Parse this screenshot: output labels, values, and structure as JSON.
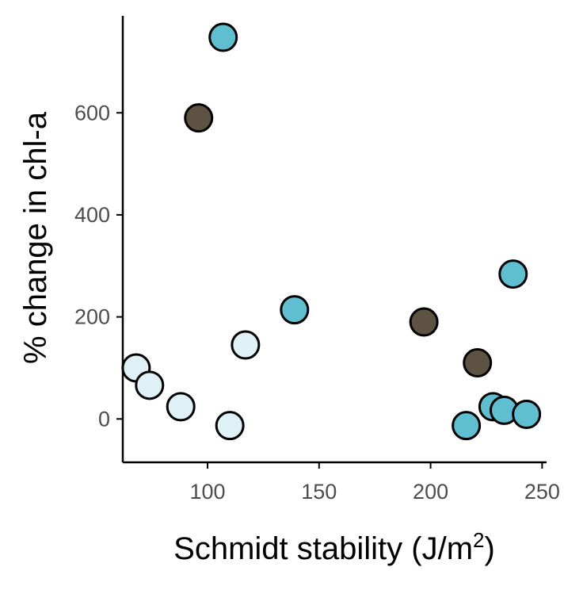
{
  "chart_data": {
    "type": "scatter",
    "xlabel": "Schmidt stability (J/m",
    "xlabel_sup": "2",
    "xlabel_end": ")",
    "ylabel": "% change in chl-a",
    "xlim": [
      62,
      252
    ],
    "ylim": [
      -85,
      790
    ],
    "xticks": [
      100,
      150,
      200,
      250
    ],
    "yticks": [
      0,
      200,
      400,
      600
    ],
    "grid": false,
    "legend": "none",
    "colors": {
      "light": "#dff0f6",
      "teal": "#5fbfd0",
      "dark": "#5e5342"
    },
    "points": [
      {
        "x": 107,
        "y": 748,
        "color": "teal"
      },
      {
        "x": 96,
        "y": 590,
        "color": "dark"
      },
      {
        "x": 139,
        "y": 214,
        "color": "teal"
      },
      {
        "x": 117,
        "y": 145,
        "color": "light"
      },
      {
        "x": 197,
        "y": 190,
        "color": "dark"
      },
      {
        "x": 237,
        "y": 284,
        "color": "teal"
      },
      {
        "x": 221,
        "y": 110,
        "color": "dark"
      },
      {
        "x": 68,
        "y": 100,
        "color": "light"
      },
      {
        "x": 74,
        "y": 66,
        "color": "light"
      },
      {
        "x": 88,
        "y": 24,
        "color": "light"
      },
      {
        "x": 110,
        "y": -13,
        "color": "light"
      },
      {
        "x": 216,
        "y": -13,
        "color": "teal"
      },
      {
        "x": 228,
        "y": 24,
        "color": "teal"
      },
      {
        "x": 233,
        "y": 17,
        "color": "teal"
      },
      {
        "x": 243,
        "y": 9,
        "color": "teal"
      }
    ]
  }
}
